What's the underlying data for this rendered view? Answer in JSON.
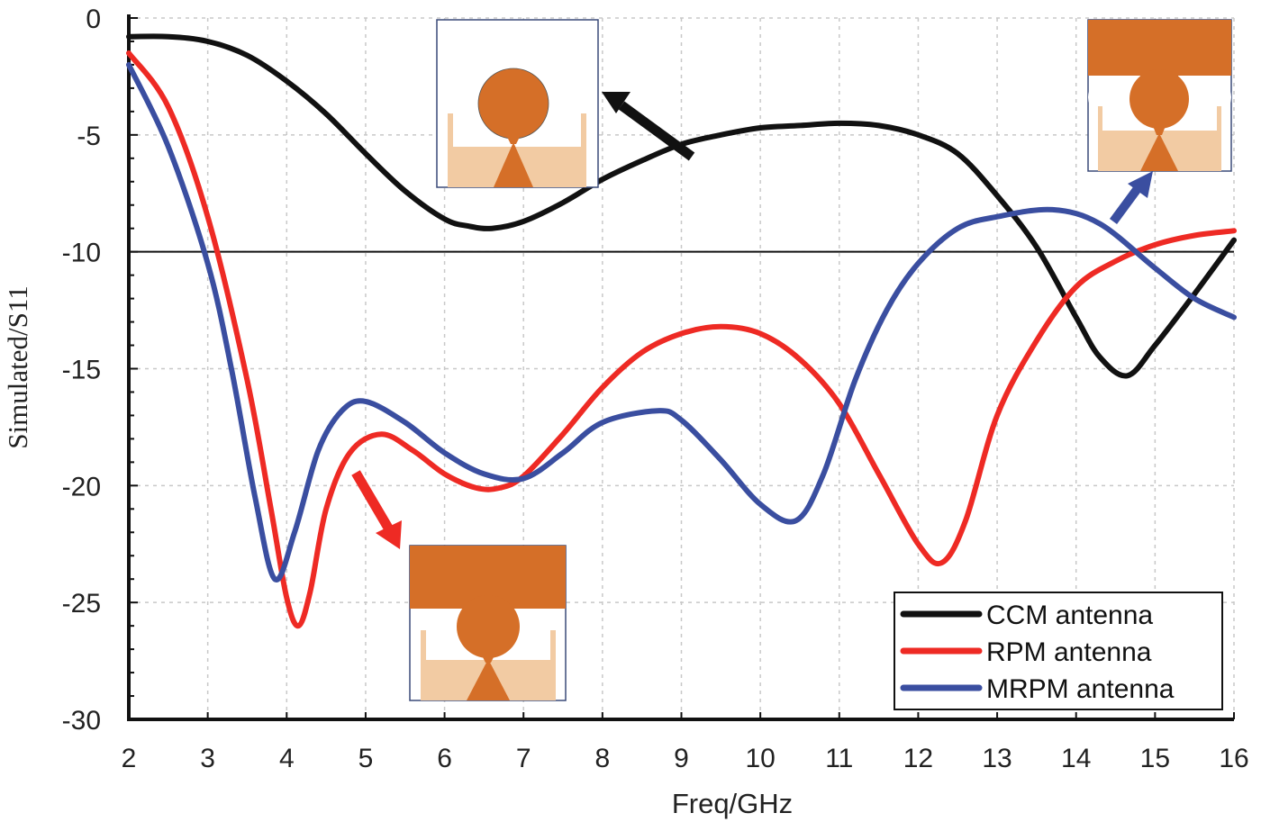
{
  "chart_data": {
    "type": "line",
    "title": "",
    "xlabel": "Freq/GHz",
    "ylabel": "Simulated/S11",
    "xlim": [
      2,
      16
    ],
    "ylim": [
      -30,
      0
    ],
    "xticks": [
      2,
      3,
      4,
      5,
      6,
      7,
      8,
      9,
      10,
      11,
      12,
      13,
      14,
      15,
      16
    ],
    "yticks": [
      0,
      -5,
      -10,
      -15,
      -20,
      -25,
      -30
    ],
    "grid": true,
    "reference_line": -10,
    "legend_position": "bottom-right",
    "series": [
      {
        "name": "CCM antenna",
        "color": "#111111",
        "x": [
          2,
          2.5,
          3,
          3.5,
          4,
          4.5,
          5,
          5.5,
          6,
          6.3,
          6.6,
          7,
          7.5,
          8,
          8.5,
          9,
          9.5,
          10,
          10.5,
          11,
          11.5,
          12,
          12.5,
          13,
          13.5,
          14,
          14.3,
          14.65,
          15,
          15.5,
          16
        ],
        "values": [
          -0.8,
          -0.8,
          -1.0,
          -1.6,
          -2.7,
          -4.1,
          -5.8,
          -7.4,
          -8.6,
          -8.9,
          -9.0,
          -8.7,
          -7.9,
          -6.9,
          -6.1,
          -5.4,
          -5.0,
          -4.7,
          -4.6,
          -4.5,
          -4.6,
          -5.0,
          -5.8,
          -7.6,
          -9.8,
          -12.8,
          -14.5,
          -15.3,
          -14.0,
          -11.8,
          -9.5
        ]
      },
      {
        "name": "RPM antenna",
        "color": "#ee2a24",
        "x": [
          2,
          2.5,
          3,
          3.5,
          3.8,
          4.0,
          4.15,
          4.3,
          4.5,
          4.8,
          5.2,
          5.6,
          6,
          6.4,
          6.7,
          7,
          7.5,
          8,
          8.5,
          9,
          9.5,
          10,
          10.5,
          11,
          11.5,
          12,
          12.3,
          12.6,
          13,
          13.5,
          14,
          14.5,
          15,
          15.5,
          16
        ],
        "values": [
          -1.5,
          -3.8,
          -8.5,
          -15.5,
          -21.0,
          -24.8,
          -26.0,
          -24.5,
          -21.0,
          -18.6,
          -17.8,
          -18.5,
          -19.5,
          -20.1,
          -20.1,
          -19.6,
          -17.8,
          -15.8,
          -14.3,
          -13.5,
          -13.2,
          -13.5,
          -14.6,
          -16.5,
          -19.5,
          -22.5,
          -23.3,
          -21.5,
          -17.0,
          -13.8,
          -11.5,
          -10.4,
          -9.7,
          -9.3,
          -9.1
        ]
      },
      {
        "name": "MRPM antenna",
        "color": "#3a4ea0",
        "x": [
          2,
          2.5,
          3,
          3.3,
          3.6,
          3.85,
          4.1,
          4.4,
          4.7,
          5,
          5.5,
          6,
          6.5,
          7,
          7.5,
          8,
          8.7,
          9,
          9.5,
          10,
          10.45,
          10.8,
          11.2,
          11.6,
          12,
          12.5,
          13,
          13.7,
          14.3,
          15,
          15.5,
          16
        ],
        "values": [
          -2.0,
          -5.5,
          -10.5,
          -15.0,
          -20.5,
          -24.0,
          -22.0,
          -18.5,
          -16.8,
          -16.4,
          -17.3,
          -18.6,
          -19.5,
          -19.7,
          -18.6,
          -17.3,
          -16.8,
          -17.2,
          -18.9,
          -20.8,
          -21.5,
          -19.5,
          -15.5,
          -12.5,
          -10.5,
          -9.0,
          -8.5,
          -8.2,
          -8.8,
          -10.7,
          -12.0,
          -12.8
        ]
      }
    ],
    "legend": [
      "CCM antenna",
      "RPM antenna",
      "MRPM antenna"
    ],
    "insets": [
      {
        "name": "ccm-inset",
        "points_to_series": "CCM antenna"
      },
      {
        "name": "rpm-inset",
        "points_to_series": "RPM antenna"
      },
      {
        "name": "mrpm-inset",
        "points_to_series": "MRPM antenna"
      }
    ],
    "colors": {
      "copper": "#d56f28",
      "substrate": "#f2cba3",
      "ccm_arrow": "#111111",
      "rpm_arrow": "#ee2a24",
      "mrpm_arrow": "#3a4ea0"
    }
  }
}
